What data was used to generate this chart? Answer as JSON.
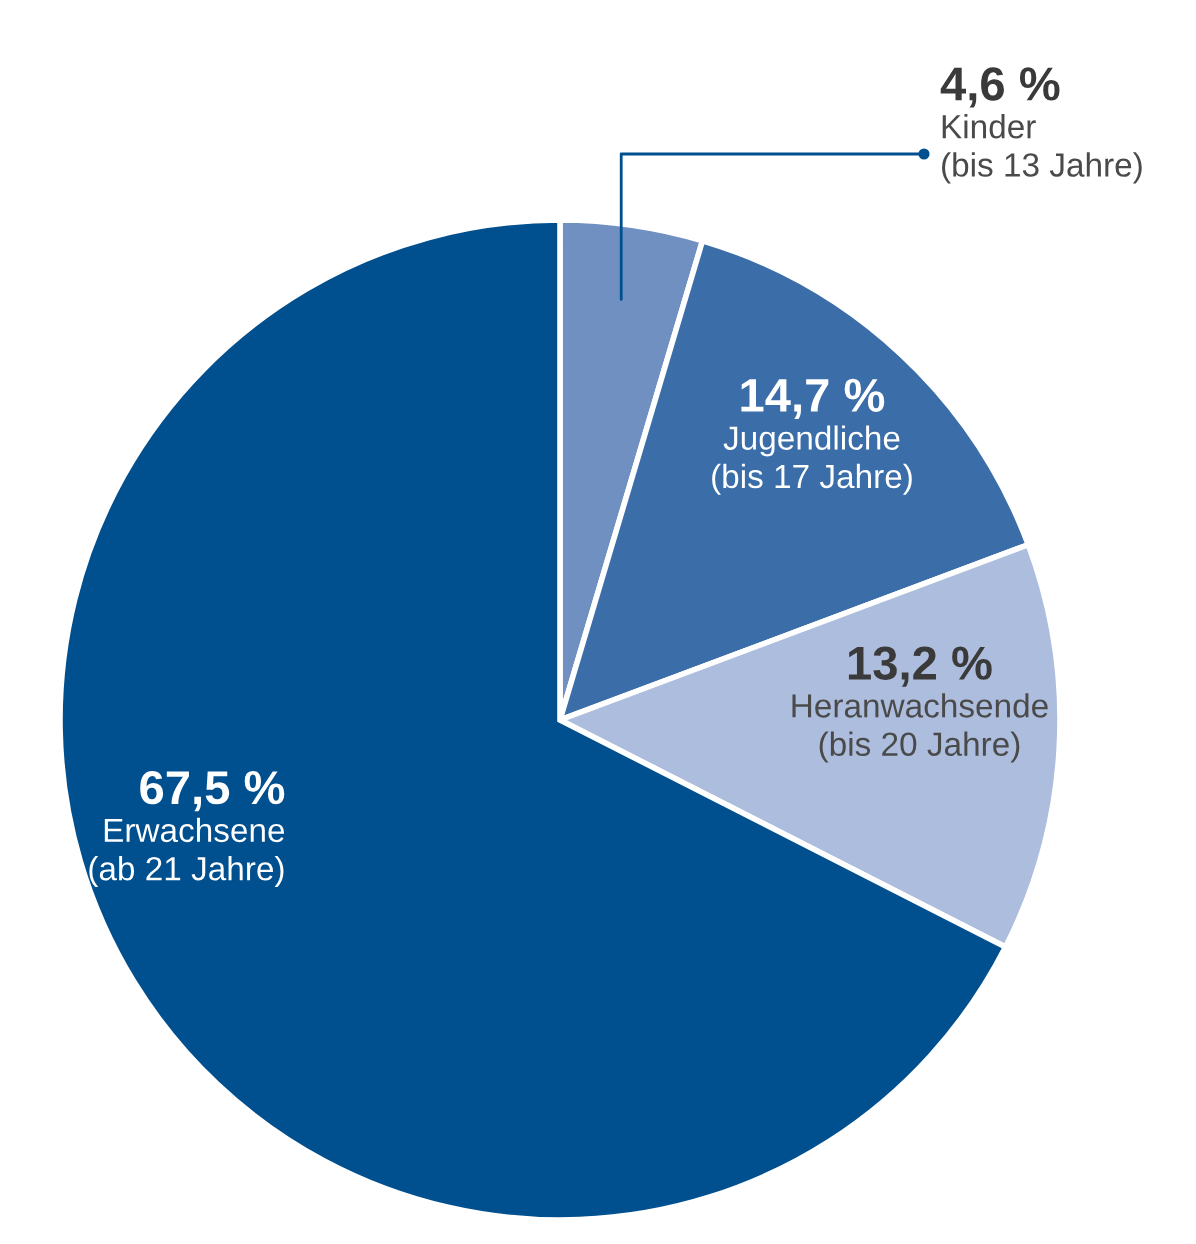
{
  "chart_data": {
    "type": "pie",
    "categories": [
      "Kinder\n(bis 13 Jahre)",
      "Jugendliche\n(bis 17 Jahre)",
      "Heranwachsende\n(bis 20 Jahre)",
      "Erwachsene\n(ab 21 Jahre)"
    ],
    "values": [
      4.6,
      14.7,
      13.2,
      67.5
    ],
    "value_labels": [
      "4,6 %",
      "14,7 %",
      "13,2 %",
      "67,5 %"
    ],
    "colors": [
      "#7090c2",
      "#3b6ea9",
      "#adbddd",
      "#004f8f"
    ]
  }
}
